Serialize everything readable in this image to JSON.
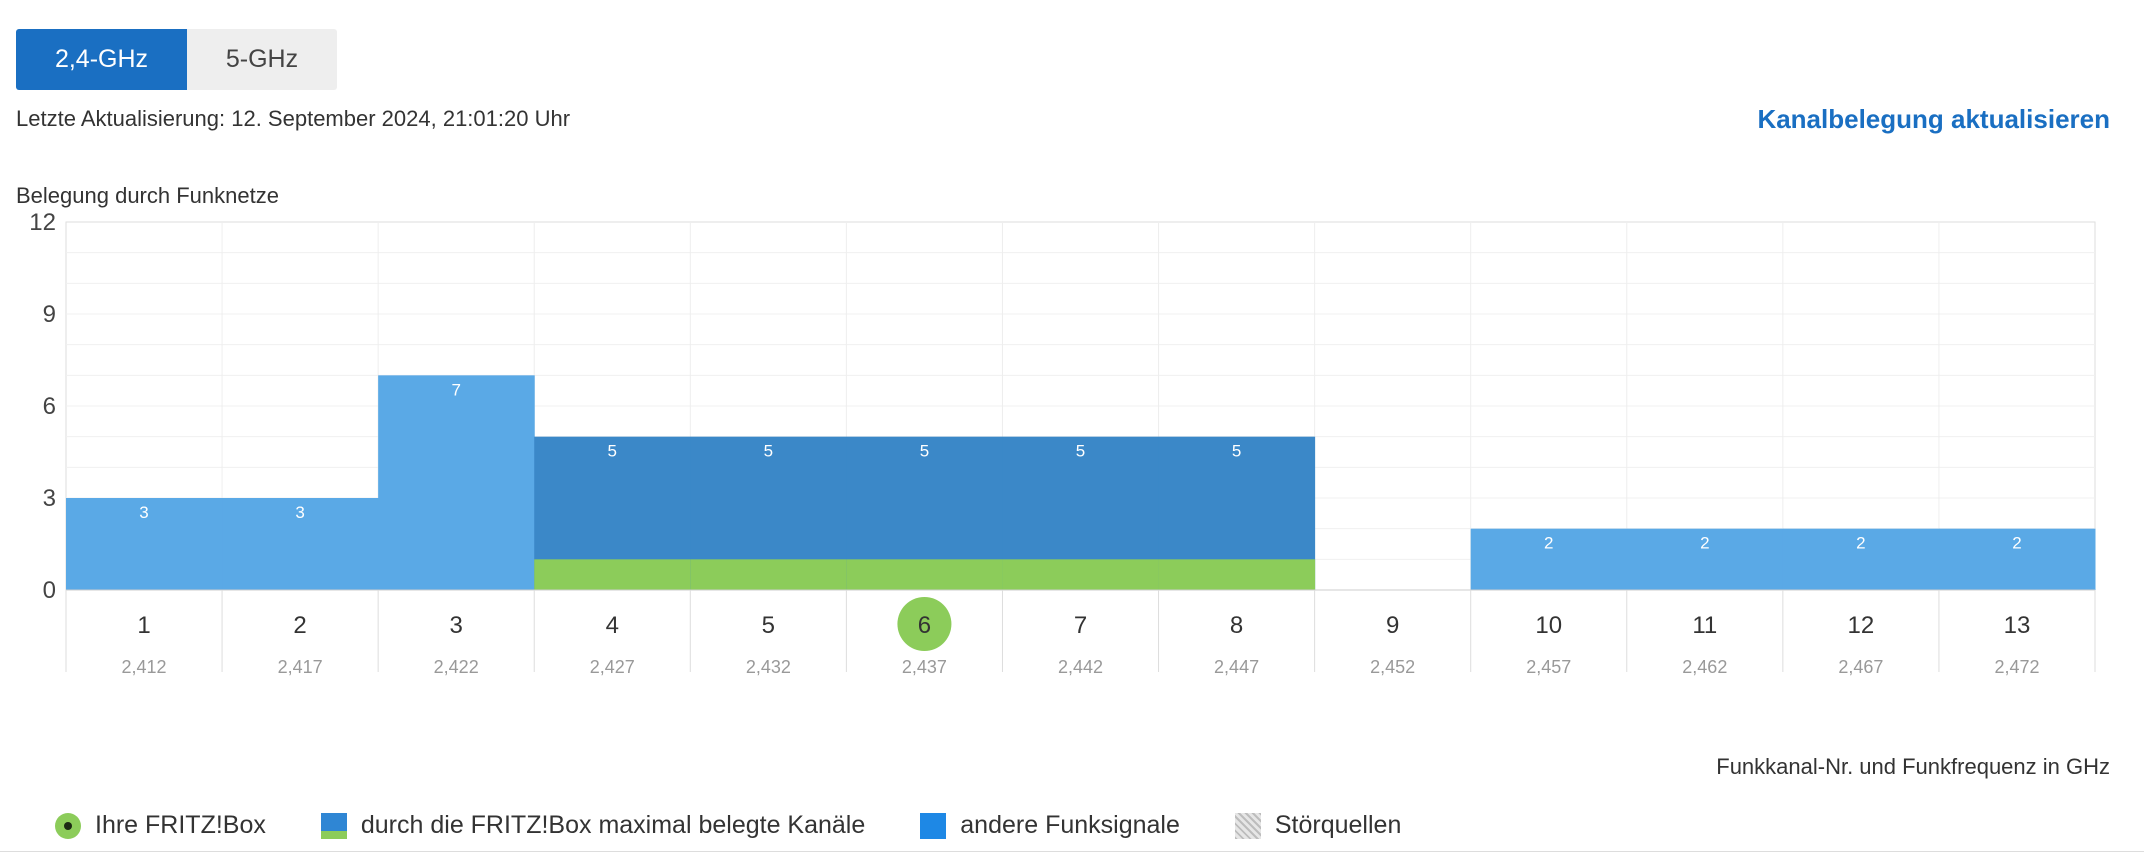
{
  "tabs": [
    {
      "label": "2,4-GHz",
      "active": true
    },
    {
      "label": "5-GHz",
      "active": false
    }
  ],
  "last_update": "Letzte Aktualisierung: 12. September 2024, 21:01:20 Uhr",
  "refresh_link": "Kanalbelegung aktualisieren",
  "chart_title": "Belegung durch Funknetze",
  "x_axis_caption": "Funkkanal-Nr. und Funkfrequenz in GHz",
  "chart_data": {
    "type": "bar",
    "categories": [
      "1",
      "2",
      "3",
      "4",
      "5",
      "6",
      "7",
      "8",
      "9",
      "10",
      "11",
      "12",
      "13"
    ],
    "frequencies": [
      "2,412",
      "2,417",
      "2,422",
      "2,427",
      "2,432",
      "2,437",
      "2,442",
      "2,447",
      "2,452",
      "2,457",
      "2,462",
      "2,467",
      "2,472"
    ],
    "values": [
      3,
      3,
      7,
      5,
      5,
      5,
      5,
      5,
      0,
      2,
      2,
      2,
      2
    ],
    "fritzbox_channel": "6",
    "fritzbox_max_channels": [
      "4",
      "5",
      "6",
      "7",
      "8"
    ],
    "y_ticks": [
      0,
      3,
      6,
      9,
      12
    ],
    "ylim": [
      0,
      12
    ],
    "grid": true,
    "colors": {
      "other": "#5aa9e6",
      "fritz_span": "#3b88c8",
      "fritz_band": "#8ccc5a",
      "fritz_channel": "#8ccc5a"
    }
  },
  "legend": [
    {
      "label": "Ihre FRITZ!Box",
      "icon": "fritzbox-dot-icon"
    },
    {
      "label": "durch die FRITZ!Box maximal belegte Kanäle",
      "icon": "max-channels-swatch"
    },
    {
      "label": "andere Funksignale",
      "icon": "other-signals-swatch"
    },
    {
      "label": "Störquellen",
      "icon": "interference-swatch"
    }
  ]
}
